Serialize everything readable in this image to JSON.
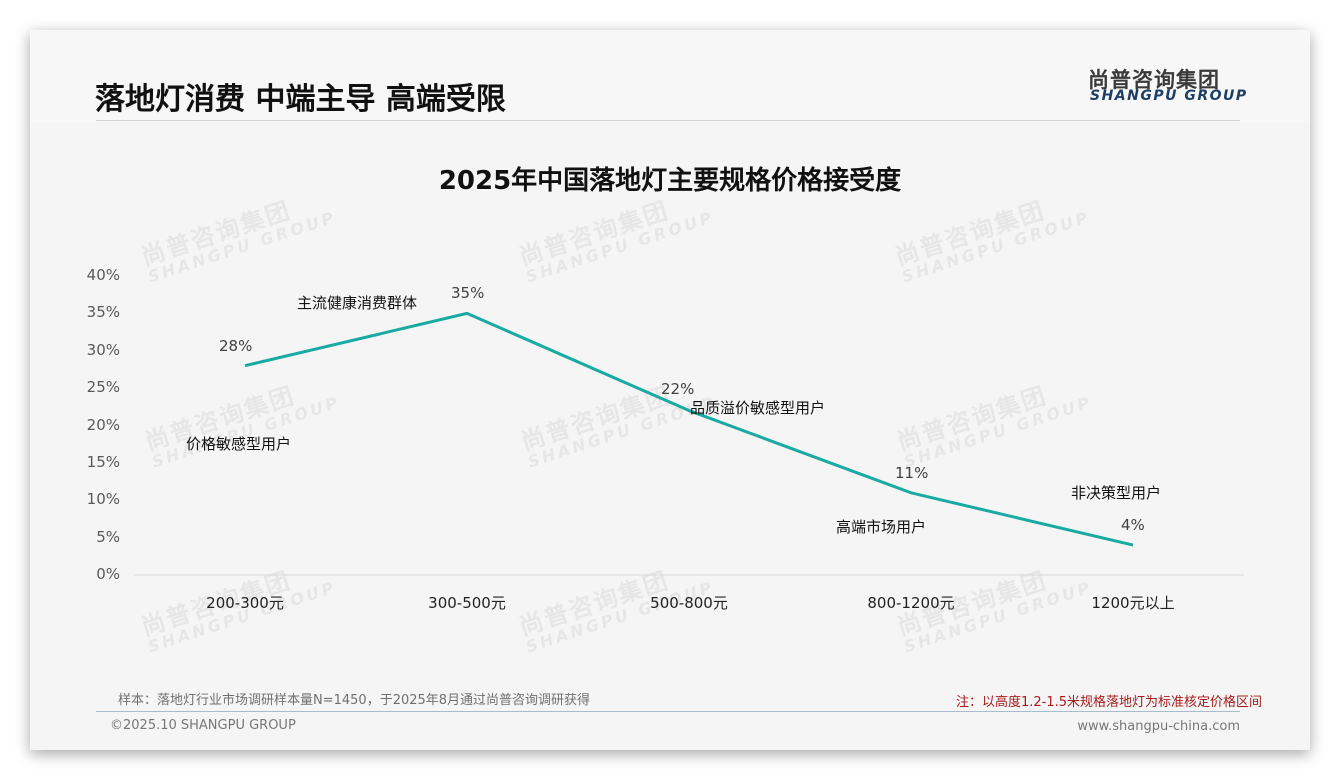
{
  "header": {
    "page_title": "落地灯消费 中端主导 高端受限",
    "logo_cn": "尚普咨询集团",
    "logo_en": "SHANGPU GROUP"
  },
  "watermark": {
    "cn": "尚普咨询集团",
    "en": "SHANGPU GROUP"
  },
  "chart_data": {
    "type": "line",
    "title": "2025年中国落地灯主要规格价格接受度",
    "xlabel": "",
    "ylabel": "",
    "categories": [
      "200-300元",
      "300-500元",
      "500-800元",
      "800-1200元",
      "1200元以上"
    ],
    "values": [
      28,
      35,
      22,
      11,
      4
    ],
    "data_labels": [
      "28%",
      "35%",
      "22%",
      "11%",
      "4%"
    ],
    "annotations": [
      "价格敏感型用户",
      "主流健康消费群体",
      "品质溢价敏感型用户",
      "高端市场用户",
      "非决策型用户"
    ],
    "yticks": [
      "0%",
      "5%",
      "10%",
      "15%",
      "20%",
      "25%",
      "30%",
      "35%",
      "40%"
    ],
    "ylim": [
      0,
      40
    ],
    "grid": false,
    "legend": "none",
    "line_color": "#1aaaa4"
  },
  "notes": {
    "sample": "样本：落地灯行业市场调研样本量N=1450，于2025年8月通过尚普咨询调研获得",
    "standard": "注：以高度1.2-1.5米规格落地灯为标准核定价格区间"
  },
  "footer": {
    "copyright": "©2025.10 SHANGPU GROUP",
    "website": "www.shangpu-china.com"
  }
}
